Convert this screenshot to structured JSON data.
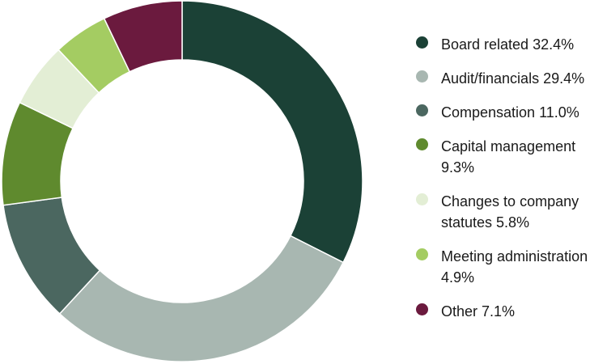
{
  "chart_data": {
    "type": "pie",
    "donut": true,
    "start_angle_deg": 0,
    "direction": "clockwise",
    "legend_position": "right",
    "slices": [
      {
        "label": "Board related 32.4%",
        "value": 32.4,
        "color": "#1b4136"
      },
      {
        "label": "Audit/financials 29.4%",
        "value": 29.4,
        "color": "#a8b7b1"
      },
      {
        "label": "Compensation 11.0%",
        "value": 11.0,
        "color": "#4b6760"
      },
      {
        "label": "Capital management 9.3%",
        "value": 9.3,
        "color": "#5f8a2e"
      },
      {
        "label": "Changes to company statutes 5.8%",
        "value": 5.8,
        "color": "#e3eed5"
      },
      {
        "label": "Meeting administration 4.9%",
        "value": 4.9,
        "color": "#a4cc62"
      },
      {
        "label": "Other 7.1%",
        "value": 7.1,
        "color": "#6b1a3e"
      }
    ]
  }
}
